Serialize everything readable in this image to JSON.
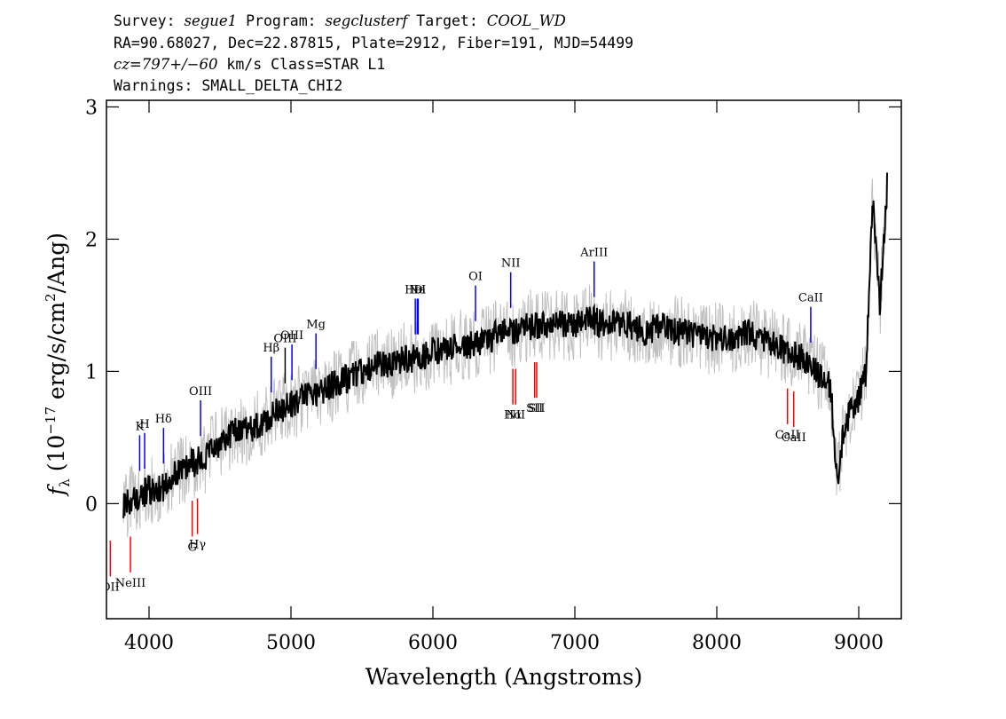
{
  "header": {
    "line1": {
      "survey_label": "Survey:",
      "survey": "segue1",
      "program_label": "Program:",
      "program": "segclusterf",
      "target_label": "Target:",
      "target": "COOL_WD"
    },
    "line2": "RA=90.68027, Dec=22.87815, Plate=2912, Fiber=191, MJD=54499",
    "line3": {
      "cz": "cz=797+/−60",
      "rest": " km/s Class=STAR L1"
    },
    "line4": "Warnings: SMALL_DELTA_CHI2"
  },
  "chart_data": {
    "type": "line",
    "xlabel": "Wavelength (Angstroms)",
    "ylabel": {
      "f": "f",
      "lambda": "λ",
      "open": " (10",
      "exp": "−17",
      "mid": " erg/s/cm",
      "sq": "2",
      "close": "/Ang)"
    },
    "xlim": [
      3700,
      9300
    ],
    "ylim": [
      -0.87,
      3.05
    ],
    "x_ticks": [
      4000,
      5000,
      6000,
      7000,
      8000,
      9000
    ],
    "y_ticks": [
      0,
      1,
      2,
      3
    ],
    "colors": {
      "flux": "#000000",
      "error": "#c0c0c0",
      "emission": "#0000ff",
      "absorption": "#ff0000"
    },
    "series": [
      {
        "style": "smoothed flux",
        "x": [
          3820,
          3900,
          4000,
          4100,
          4200,
          4300,
          4400,
          4500,
          4600,
          4700,
          4800,
          4900,
          5000,
          5100,
          5200,
          5300,
          5400,
          5500,
          5600,
          5700,
          5800,
          5900,
          6000,
          6100,
          6200,
          6300,
          6400,
          6500,
          6600,
          6700,
          6800,
          6900,
          7000,
          7100,
          7200,
          7300,
          7400,
          7500,
          7600,
          7700,
          7800,
          7900,
          8000,
          8100,
          8200,
          8300,
          8400,
          8500,
          8600,
          8700,
          8800,
          8850,
          8900,
          9000,
          9050,
          9100,
          9150,
          9200
        ],
        "y": [
          0.0,
          0.05,
          0.1,
          0.12,
          0.25,
          0.3,
          0.35,
          0.45,
          0.55,
          0.55,
          0.6,
          0.7,
          0.75,
          0.8,
          0.85,
          0.9,
          0.95,
          1.0,
          1.05,
          1.05,
          1.1,
          1.1,
          1.15,
          1.15,
          1.2,
          1.2,
          1.25,
          1.3,
          1.3,
          1.35,
          1.35,
          1.35,
          1.35,
          1.4,
          1.35,
          1.35,
          1.35,
          1.3,
          1.35,
          1.3,
          1.3,
          1.25,
          1.25,
          1.25,
          1.3,
          1.25,
          1.2,
          1.15,
          1.1,
          1.0,
          0.9,
          0.2,
          0.6,
          0.8,
          1.0,
          2.3,
          1.5,
          2.4
        ]
      }
    ],
    "features": {
      "i": [
        0,
        0,
        1,
        1,
        1,
        0,
        0,
        1,
        1,
        2,
        1,
        1,
        1,
        1,
        1,
        1,
        1,
        0,
        0,
        0,
        0,
        1,
        0,
        0,
        1
      ],
      "x": [
        3727,
        3869,
        3934,
        3969,
        4102,
        4304,
        4341,
        4363,
        4861,
        4959,
        5007,
        5176,
        5876,
        5890,
        5896,
        6300,
        6548,
        6563,
        6583,
        6717,
        6731,
        7136,
        8498,
        8542,
        8662
      ],
      "lbl": [
        "OII",
        "NeIII",
        "K",
        "H",
        "Hδ",
        "G",
        "Hγ",
        "OIII",
        "Hβ",
        "OIII",
        "OIII",
        "Mg",
        "HeI",
        "Na",
        "D",
        "OI",
        "NII",
        "Hα",
        "NII",
        "SII",
        "SII",
        "ArIII",
        "CaII",
        "CaII",
        "CaII"
      ]
    }
  }
}
